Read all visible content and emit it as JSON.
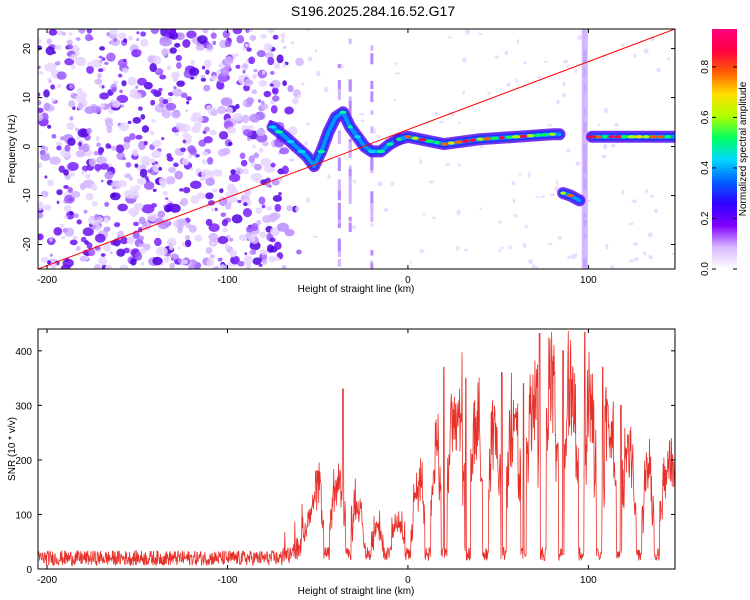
{
  "title": "S196.2025.284.16.52.G17",
  "chart_data": [
    {
      "type": "heatmap",
      "name": "spectrogram",
      "xlabel": "Height of straight line (km)",
      "ylabel": "Frequency (Hz)",
      "xlim": [
        -205,
        148
      ],
      "ylim": [
        -25,
        24
      ],
      "xticks": [
        -200,
        -100,
        0,
        100
      ],
      "xtick_labels": [
        "-200",
        "-100",
        "0",
        "100"
      ],
      "yticks": [
        -20,
        -10,
        0,
        10,
        20
      ],
      "ytick_labels": [
        "-20",
        "-10",
        "0",
        "10",
        "20"
      ],
      "colorbar": {
        "label": "Normalized spectral amplitude",
        "range": [
          0,
          0.95
        ],
        "ticks": [
          0,
          0.2,
          0.4,
          0.6,
          0.8
        ],
        "tick_labels": [
          "0.0",
          "0.2",
          "0.4",
          "0.6",
          "0.8"
        ],
        "colormap": [
          "#ffffff",
          "#d8b8ff",
          "#8000ff",
          "#3000ff",
          "#0060ff",
          "#00d8ff",
          "#00ff60",
          "#b0ff00",
          "#ffe000",
          "#ff6000",
          "#ff0040",
          "#ff0080"
        ]
      },
      "noise_region_x": [
        -205,
        -70
      ],
      "ridge": [
        {
          "x": -75,
          "f": 4
        },
        {
          "x": -68,
          "f": 2
        },
        {
          "x": -62,
          "f": 0
        },
        {
          "x": -56,
          "f": -2
        },
        {
          "x": -52,
          "f": -4
        },
        {
          "x": -48,
          "f": -1
        },
        {
          "x": -44,
          "f": 3
        },
        {
          "x": -40,
          "f": 6
        },
        {
          "x": -36,
          "f": 7
        },
        {
          "x": -32,
          "f": 4
        },
        {
          "x": -28,
          "f": 2
        },
        {
          "x": -24,
          "f": 0
        },
        {
          "x": -20,
          "f": -1
        },
        {
          "x": -15,
          "f": -1
        },
        {
          "x": -10,
          "f": 0.5
        },
        {
          "x": -5,
          "f": 1.5
        },
        {
          "x": 0,
          "f": 2
        },
        {
          "x": 20,
          "f": 0.5
        },
        {
          "x": 40,
          "f": 1.5
        },
        {
          "x": 60,
          "f": 2
        },
        {
          "x": 80,
          "f": 2.5
        },
        {
          "x": 84,
          "f": 2.5
        }
      ],
      "ridge2": [
        {
          "x": 86,
          "f": -9.5
        },
        {
          "x": 90,
          "f": -10
        },
        {
          "x": 95,
          "f": -11
        }
      ],
      "ridge3": [
        {
          "x": 102,
          "f": 2
        },
        {
          "x": 120,
          "f": 2
        },
        {
          "x": 148,
          "f": 2
        }
      ],
      "vertical_lines_x": [
        -38,
        -32,
        -20,
        98
      ],
      "line_color": "#ff0000"
    },
    {
      "type": "line",
      "name": "snr",
      "xlabel": "Height of straight line (km)",
      "ylabel": "SNR (10 * v/v)",
      "xlim": [
        -205,
        148
      ],
      "ylim": [
        0,
        440
      ],
      "xticks": [
        -200,
        -100,
        0,
        100
      ],
      "xtick_labels": [
        "-200",
        "-100",
        "0",
        "100"
      ],
      "yticks": [
        0,
        100,
        200,
        300,
        400
      ],
      "ytick_labels": [
        "0",
        "100",
        "200",
        "300",
        "400"
      ],
      "series": [
        {
          "name": "SNR",
          "color": "#e8302a",
          "envelope_x": [
            -205,
            -70,
            -60,
            -50,
            -40,
            -30,
            -20,
            -10,
            0,
            10,
            20,
            30,
            40,
            50,
            60,
            70,
            80,
            90,
            100,
            110,
            120,
            130,
            140,
            148
          ],
          "envelope_y": [
            20,
            20,
            40,
            140,
            160,
            120,
            80,
            70,
            100,
            180,
            250,
            270,
            250,
            240,
            250,
            300,
            340,
            320,
            300,
            260,
            220,
            180,
            160,
            180
          ],
          "dips_x": [
            -45,
            -33,
            -22,
            -12,
            0,
            11,
            20,
            33,
            43,
            53,
            64,
            75,
            85,
            96,
            106,
            117,
            128,
            138
          ],
          "spikes": [
            {
              "x": -36,
              "y": 330
            },
            {
              "x": 20,
              "y": 370
            },
            {
              "x": 32,
              "y": 350
            },
            {
              "x": 52,
              "y": 360
            },
            {
              "x": 64,
              "y": 340
            },
            {
              "x": 73,
              "y": 432
            },
            {
              "x": 80,
              "y": 380
            },
            {
              "x": 86,
              "y": 400
            },
            {
              "x": 98,
              "y": 434
            },
            {
              "x": 108,
              "y": 370
            },
            {
              "x": 118,
              "y": 300
            },
            {
              "x": 145,
              "y": 235
            }
          ]
        }
      ]
    }
  ]
}
